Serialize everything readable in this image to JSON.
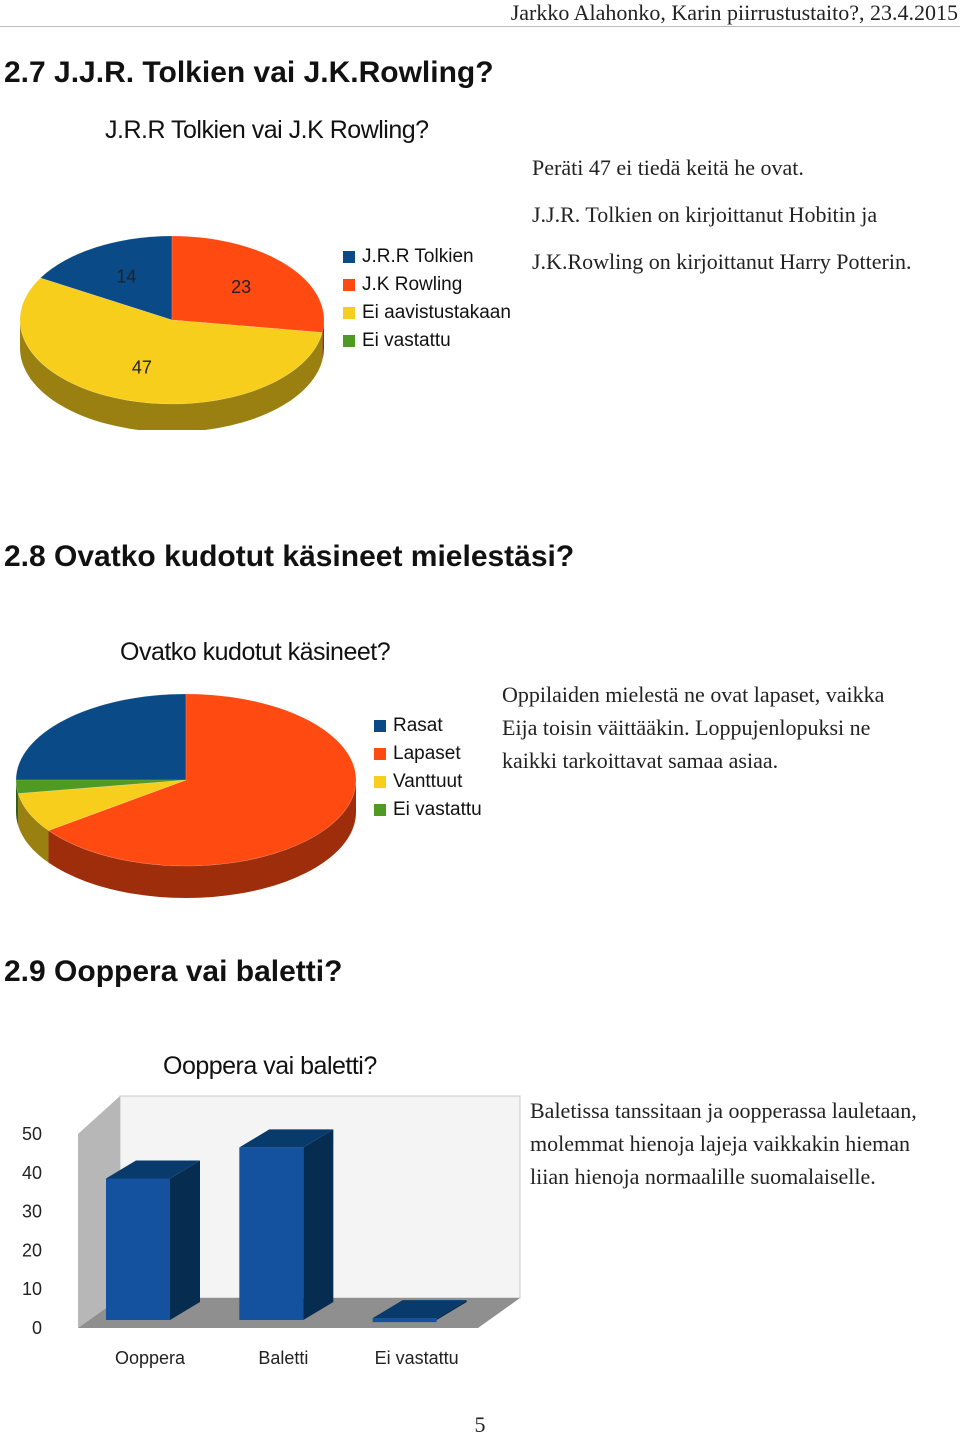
{
  "header": {
    "running_title": "Jarkko Alahonko, Karin piirrustustaito?, 23.4.2015"
  },
  "sections": [
    {
      "heading": "2.7 J.J.R. Tolkien vai J.K.Rowling?",
      "chart_title": "J.R.R Tolkien vai J.K Rowling?",
      "legend": [
        "J.R.R Tolkien",
        "J.K Rowling",
        "Ei aavistustakaan",
        "Ei vastattu"
      ],
      "slice_labels": [
        "14",
        "23",
        "47"
      ],
      "paragraph_lines": [
        "Peräti 47 ei tiedä keitä he ovat.",
        "J.J.R. Tolkien on kirjoittanut Hobitin ja",
        "J.K.Rowling on kirjoittanut Harry Potterin."
      ]
    },
    {
      "heading": "2.8 Ovatko kudotut käsineet mielestäsi?",
      "chart_title": "Ovatko kudotut käsineet?",
      "legend": [
        "Rasat",
        "Lapaset",
        "Vanttuut",
        "Ei vastattu"
      ],
      "paragraph_lines": [
        "Oppilaiden mielestä ne ovat lapaset, vaikka",
        "Eija toisin väittääkin. Loppujenlopuksi ne",
        "kaikki tarkoittavat samaa asiaa."
      ]
    },
    {
      "heading": "2.9 Ooppera vai baletti?",
      "chart_title": "Ooppera vai baletti?",
      "paragraph_lines": [
        "Baletissa tanssitaan ja oopperassa lauletaan,",
        "molemmat hienoja lajeja vaikkakin hieman",
        "liian hienoja normaalille suomalaiselle."
      ]
    }
  ],
  "colors": {
    "blue": "#0a4a86",
    "orange": "#ff4a12",
    "yellow": "#f7ce1b",
    "green": "#4f9a22"
  },
  "chart_data": [
    {
      "type": "pie",
      "title": "J.R.R Tolkien vai J.K Rowling?",
      "labels": [
        "J.R.R Tolkien",
        "J.K Rowling",
        "Ei aavistustakaan",
        "Ei vastattu"
      ],
      "values": [
        14,
        23,
        47,
        0
      ],
      "legend": "right"
    },
    {
      "type": "pie",
      "title": "Ovatko kudotut käsineet?",
      "labels": [
        "Rasat",
        "Lapaset",
        "Vanttuut",
        "Ei vastattu"
      ],
      "values": [
        20,
        52,
        6,
        2
      ],
      "legend": "right"
    },
    {
      "type": "bar",
      "title": "Ooppera vai baletti?",
      "categories": [
        "Ooppera",
        "Baletti",
        "Ei vastattu"
      ],
      "values": [
        37,
        45,
        1
      ],
      "ylim": [
        0,
        50
      ],
      "yticks": [
        0,
        10,
        20,
        30,
        40,
        50
      ],
      "grid": false
    }
  ],
  "page_number": "5"
}
